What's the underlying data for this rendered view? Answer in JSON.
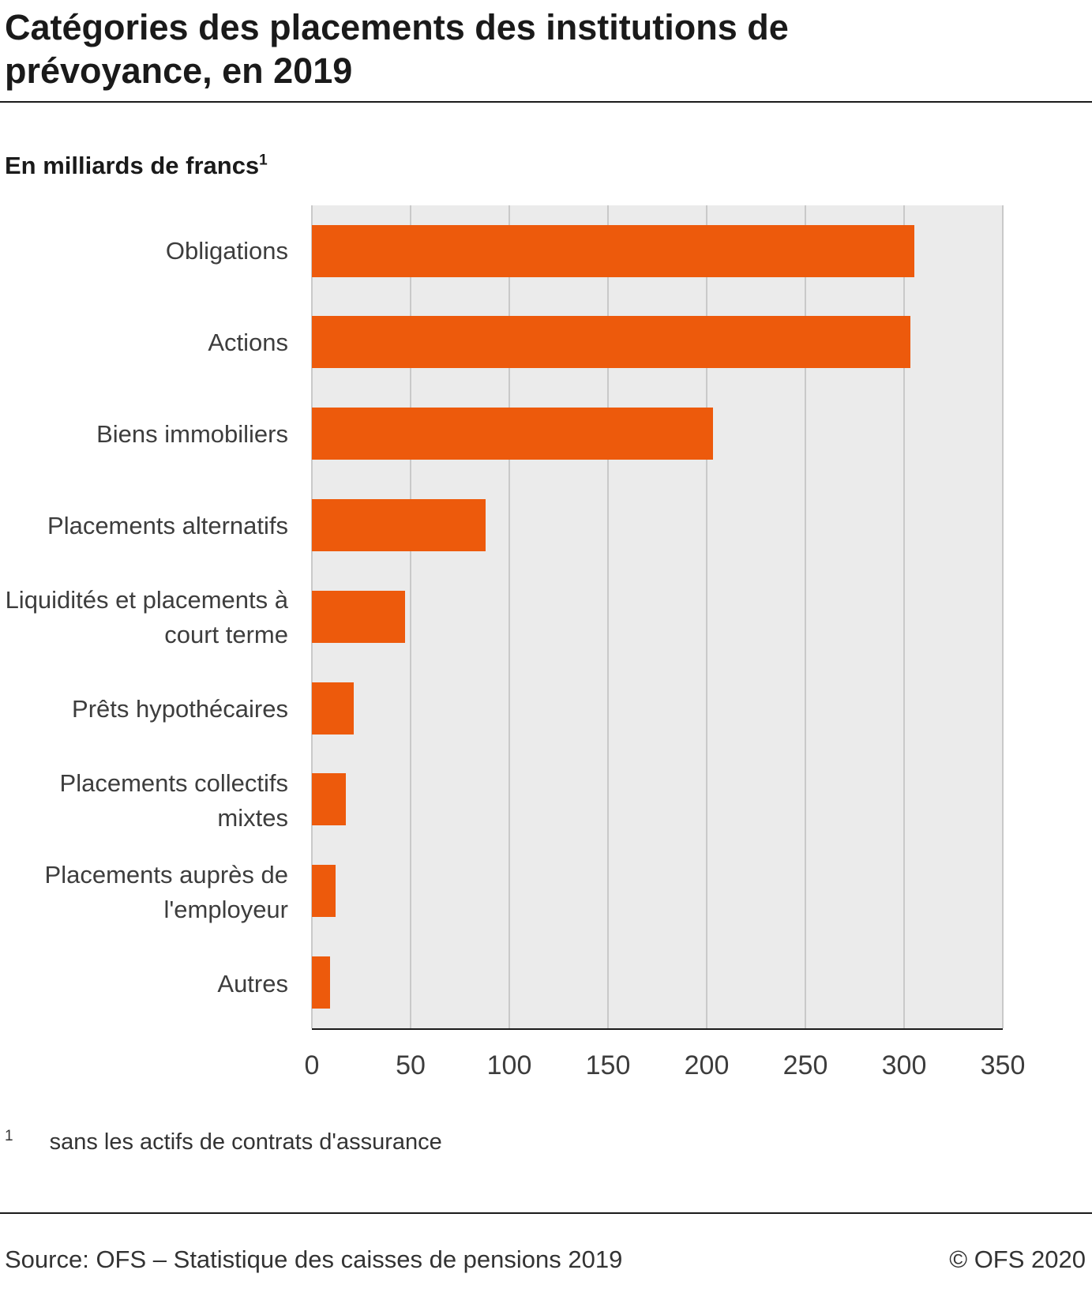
{
  "header": {
    "title": "Catégories des placements des institutions de prévoyance, en 2019",
    "unit_label": "En milliards de francs",
    "unit_footnote_marker": "1"
  },
  "chart_data": {
    "type": "bar",
    "orientation": "horizontal",
    "title": "Catégories des placements des institutions de prévoyance, en 2019",
    "xlabel": "En milliards de francs",
    "categories": [
      "Obligations",
      "Actions",
      "Biens immobiliers",
      "Placements alternatifs",
      "Liquidités et placements à court terme",
      "Prêts hypothécaires",
      "Placements collectifs mixtes",
      "Placements auprès de l'employeur",
      "Autres"
    ],
    "values": [
      305,
      303,
      203,
      88,
      47,
      21,
      17,
      12,
      9
    ],
    "xlim": [
      0,
      350
    ],
    "xticks": [
      0,
      50,
      100,
      150,
      200,
      250,
      300,
      350
    ],
    "grid": true,
    "bar_color": "#ed5a0c",
    "plot_background": "#ebebeb",
    "legend_position": "none"
  },
  "footnote": {
    "marker": "1",
    "text": "sans les actifs de contrats d'assurance"
  },
  "footer": {
    "source": "Source: OFS – Statistique des caisses de pensions 2019",
    "copyright": "© OFS 2020"
  }
}
